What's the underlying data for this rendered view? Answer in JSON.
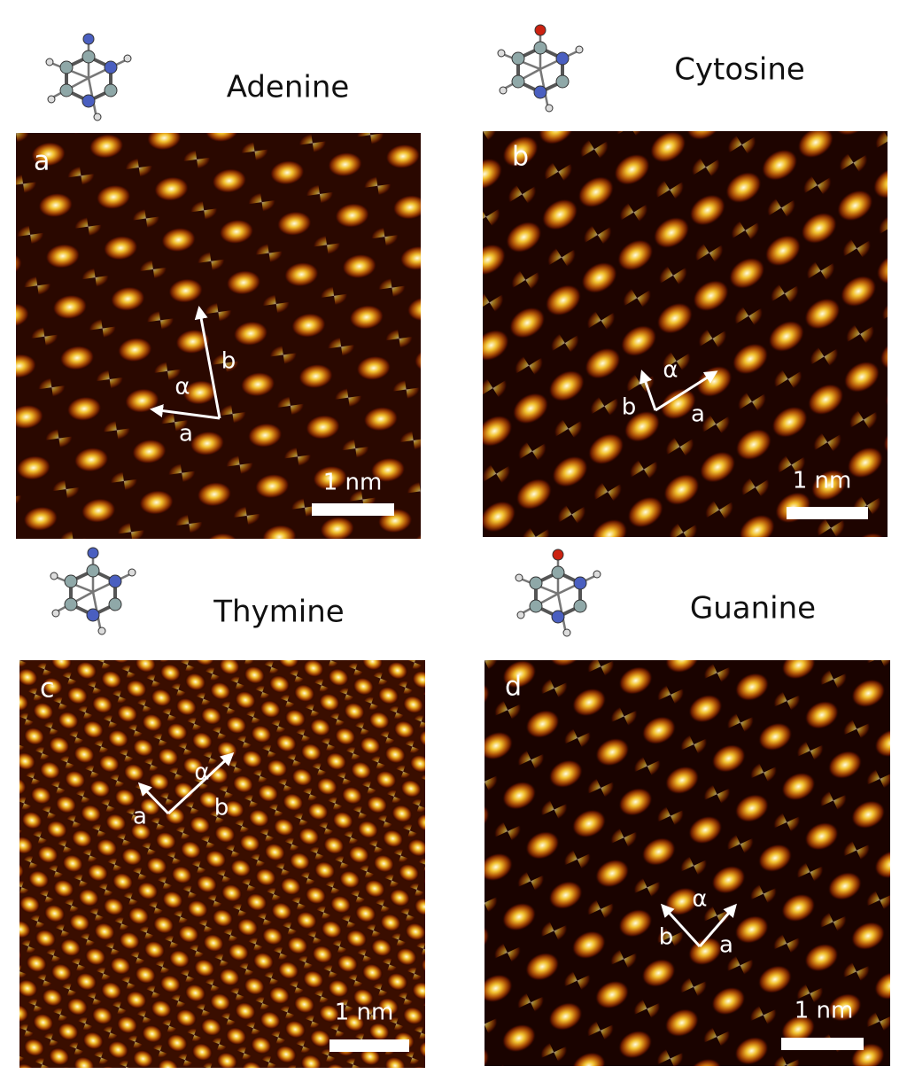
{
  "panels": [
    {
      "molecule": "Adenine",
      "letter": "a",
      "vector_a": "a",
      "vector_b": "b",
      "angle": "α",
      "scale_bar": "1 nm"
    },
    {
      "molecule": "Cytosine",
      "letter": "b",
      "vector_a": "a",
      "vector_b": "b",
      "angle": "α",
      "scale_bar": "1 nm"
    },
    {
      "molecule": "Thymine",
      "letter": "c",
      "vector_a": "a",
      "vector_b": "b",
      "angle": "α",
      "scale_bar": "1 nm"
    },
    {
      "molecule": "Guanine",
      "letter": "d",
      "vector_a": "a",
      "vector_b": "b",
      "angle": "α",
      "scale_bar": "1 nm"
    }
  ]
}
